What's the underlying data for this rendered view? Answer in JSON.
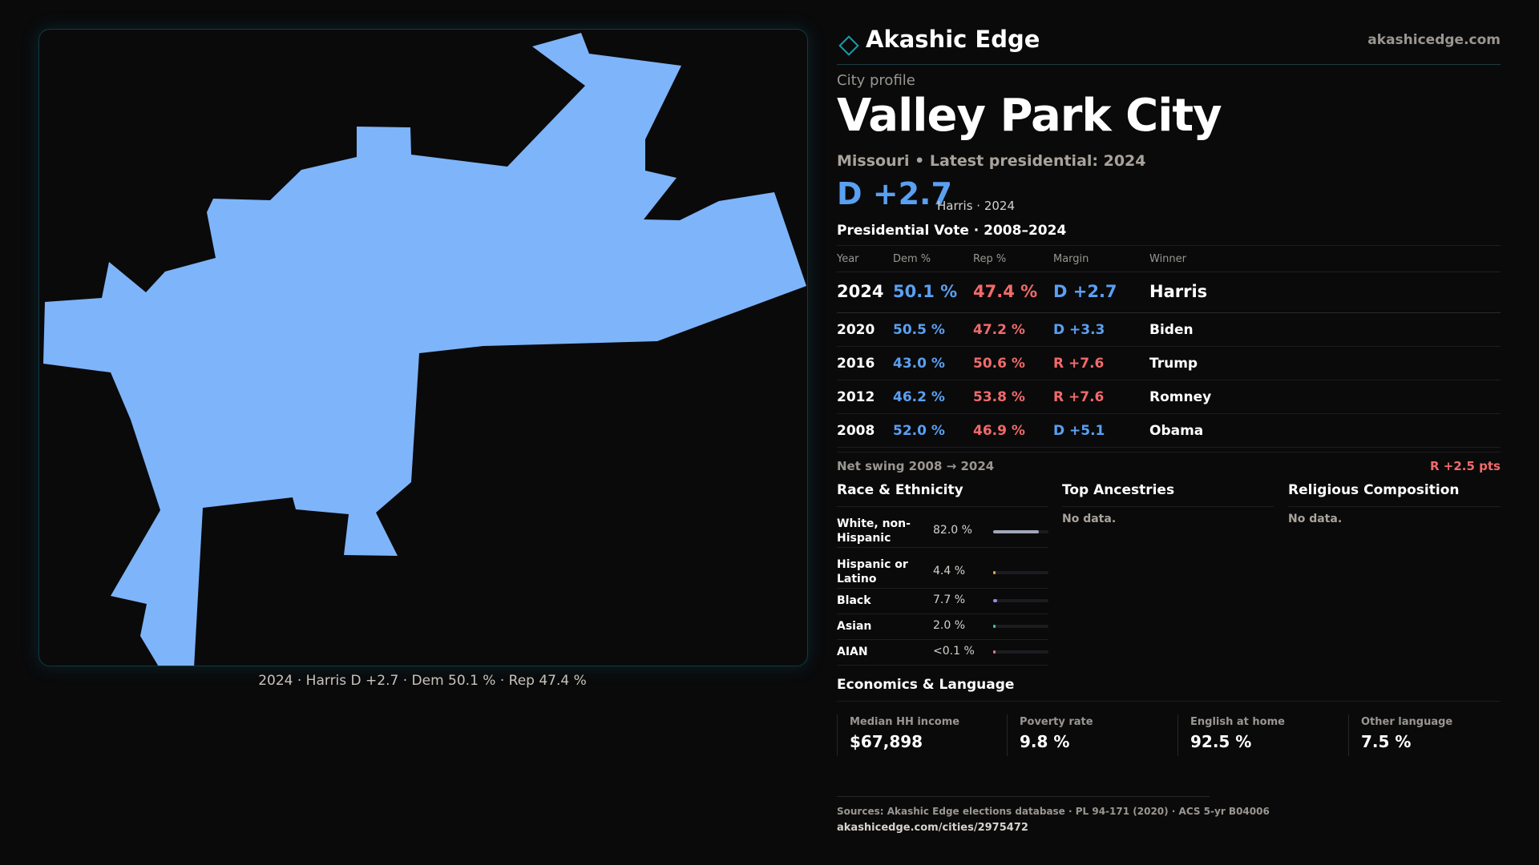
{
  "brand": {
    "name": "Akashic Edge",
    "url": "akashicedge.com",
    "logo_icon": "diamond-icon"
  },
  "map": {
    "fill_color": "#7eb4fa",
    "caption": "2024 · Harris D +2.7 · Dem 50.1 % · Rep 47.4 %"
  },
  "profile": {
    "eyebrow": "City profile",
    "title": "Valley Park City",
    "subtitle": "Missouri • Latest presidential: 2024",
    "headline_margin": "D +2.7",
    "headline_note": "Harris · 2024"
  },
  "vote_table": {
    "title": "Presidential Vote · 2008–2024",
    "headers": {
      "year": "Year",
      "dem": "Dem %",
      "rep": "Rep %",
      "margin": "Margin",
      "winner": "Winner"
    },
    "rows": [
      {
        "year": "2024",
        "dem": "50.1 %",
        "rep": "47.4 %",
        "margin": "D +2.7",
        "winner": "Harris"
      },
      {
        "year": "2020",
        "dem": "50.5 %",
        "rep": "47.2 %",
        "margin": "D +3.3",
        "winner": "Biden"
      },
      {
        "year": "2016",
        "dem": "43.0 %",
        "rep": "50.6 %",
        "margin": "R +7.6",
        "winner": "Trump"
      },
      {
        "year": "2012",
        "dem": "46.2 %",
        "rep": "53.8 %",
        "margin": "R +7.6",
        "winner": "Romney"
      },
      {
        "year": "2008",
        "dem": "52.0 %",
        "rep": "46.9 %",
        "margin": "D +5.1",
        "winner": "Obama"
      }
    ],
    "swing_label": "Net swing 2008 → 2024",
    "swing_value": "R +2.5 pts"
  },
  "colors": {
    "dem": "#5aa0f2",
    "rep": "#f26a6a",
    "accent": "#1b9aaa"
  },
  "race": {
    "title": "Race & Ethnicity",
    "rows": [
      {
        "label": "White, non-Hispanic",
        "value": "82.0 %",
        "fraction": 0.82,
        "color": "#a0a8b8"
      },
      {
        "label": "Hispanic or Latino",
        "value": "4.4 %",
        "fraction": 0.044,
        "color": "#e8a63a"
      },
      {
        "label": "Black",
        "value": "7.7 %",
        "fraction": 0.077,
        "color": "#9b86f0"
      },
      {
        "label": "Asian",
        "value": "2.0 %",
        "fraction": 0.02,
        "color": "#3ec7a6"
      },
      {
        "label": "AIAN",
        "value": "<0.1 %",
        "fraction": 0.0,
        "color": "#e07a9a"
      }
    ]
  },
  "ancestries": {
    "title": "Top Ancestries",
    "empty": "No data."
  },
  "religion": {
    "title": "Religious Composition",
    "empty": "No data."
  },
  "economics": {
    "title": "Economics & Language",
    "items": [
      {
        "label": "Median HH income",
        "value": "$67,898"
      },
      {
        "label": "Poverty rate",
        "value": "9.8 %"
      },
      {
        "label": "English at home",
        "value": "92.5 %"
      },
      {
        "label": "Other language",
        "value": "7.5 %"
      }
    ]
  },
  "sources": {
    "text": "Sources: Akashic Edge elections database · PL 94-171 (2020) · ACS 5-yr B04006",
    "url": "akashicedge.com/cities/2975472"
  }
}
